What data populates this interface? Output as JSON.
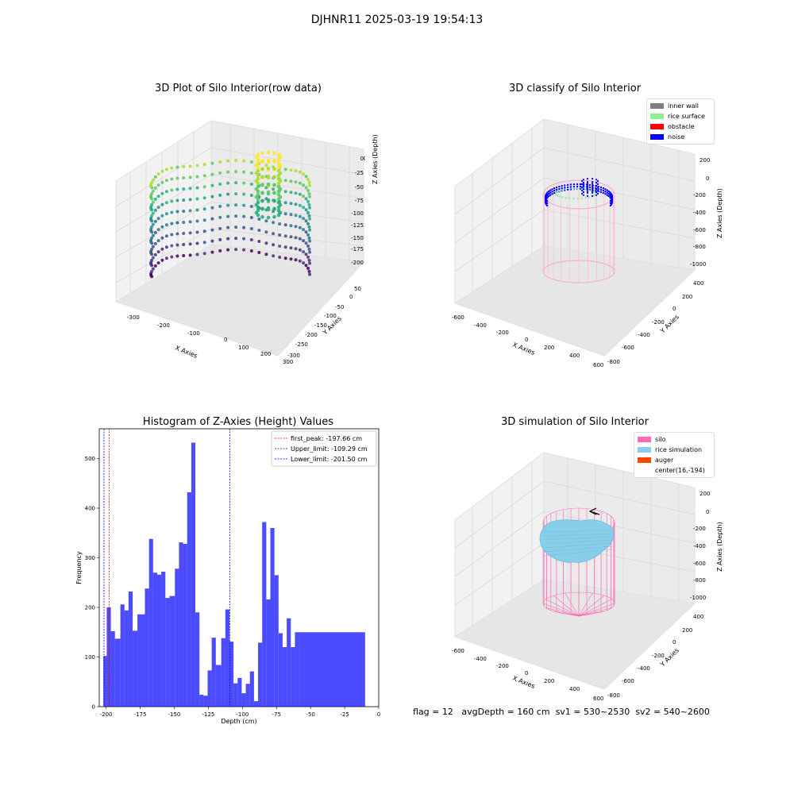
{
  "suptitle": "DJHNR11 2025-03-19 19:54:13",
  "panels": {
    "raw": {
      "title": "3D Plot of Silo Interior(row data)",
      "xlabel": "X Axies",
      "ylabel": "Y Axies",
      "zlabel": "Z Axies (Depth)",
      "xticks": [
        "-300",
        "-200",
        "-100",
        "0",
        "100",
        "200",
        "300"
      ],
      "yticks": [
        "50",
        "0",
        "-50",
        "-100",
        "-150",
        "-200",
        "-250",
        "-300"
      ],
      "zticks": [
        "0",
        "-25",
        "-50",
        "-75",
        "-100",
        "-125",
        "-150",
        "-175",
        "-200"
      ]
    },
    "classify": {
      "title": "3D classify of Silo Interior",
      "xlabel": "X Axies",
      "ylabel": "Y Axies",
      "zlabel": "Z Axies (Depth)",
      "xticks": [
        "-600",
        "-400",
        "-200",
        "0",
        "200",
        "400",
        "600"
      ],
      "yticks": [
        "400",
        "200",
        "0",
        "-200",
        "-400",
        "-600",
        "-800"
      ],
      "zticks": [
        "200",
        "0",
        "-200",
        "-400",
        "-600",
        "-800",
        "-1000"
      ],
      "legend": [
        {
          "label": "inner wall",
          "color": "#808080"
        },
        {
          "label": "rice surface",
          "color": "#90ee90"
        },
        {
          "label": "obstacle",
          "color": "#ff0000"
        },
        {
          "label": "noise",
          "color": "#0000ff"
        }
      ]
    },
    "simulation": {
      "title": "3D simulation of Silo Interior",
      "xlabel": "X Axies",
      "ylabel": "Y Axies",
      "zlabel": "Z Axies (Depth)",
      "xticks": [
        "-600",
        "-400",
        "-200",
        "0",
        "200",
        "400",
        "600"
      ],
      "yticks": [
        "400",
        "200",
        "0",
        "-200",
        "-400",
        "-600",
        "-800"
      ],
      "zticks": [
        "200",
        "0",
        "-200",
        "-400",
        "-600",
        "-800",
        "-1000"
      ],
      "legend": [
        {
          "label": "silo",
          "color": "#ff69b4"
        },
        {
          "label": "rice simulation",
          "color": "#87ceeb"
        },
        {
          "label": "auger",
          "color": "#ff4500"
        },
        {
          "label": "center(16,-194)",
          "color": ""
        }
      ]
    }
  },
  "chart_data": {
    "type": "bar",
    "title": "Histogram of Z-Axies (Height) Values",
    "xlabel": "Depth (cm)",
    "ylabel": "Frequency",
    "xlim": [
      -205,
      0
    ],
    "ylim": [
      0,
      560
    ],
    "xticks": [
      -200,
      -175,
      -150,
      -125,
      -100,
      -75,
      -50,
      -25,
      0
    ],
    "yticks": [
      0,
      100,
      200,
      300,
      400,
      500
    ],
    "bar_color": "#0000ff",
    "bins": [
      {
        "x0": -202,
        "x1": -199.5,
        "count": 102
      },
      {
        "x0": -199.5,
        "x1": -196.5,
        "count": 200
      },
      {
        "x0": -196.5,
        "x1": -193.5,
        "count": 152
      },
      {
        "x0": -193.5,
        "x1": -189.5,
        "count": 137
      },
      {
        "x0": -189.5,
        "x1": -186.5,
        "count": 206
      },
      {
        "x0": -186.5,
        "x1": -183.5,
        "count": 194
      },
      {
        "x0": -183.5,
        "x1": -180.5,
        "count": 232
      },
      {
        "x0": -180.5,
        "x1": -177.0,
        "count": 153
      },
      {
        "x0": -177.0,
        "x1": -171.5,
        "count": 186
      },
      {
        "x0": -171.5,
        "x1": -168.5,
        "count": 238
      },
      {
        "x0": -168.5,
        "x1": -165.5,
        "count": 338
      },
      {
        "x0": -165.5,
        "x1": -162.5,
        "count": 270
      },
      {
        "x0": -162.5,
        "x1": -159.5,
        "count": 266
      },
      {
        "x0": -159.5,
        "x1": -156.5,
        "count": 272
      },
      {
        "x0": -156.5,
        "x1": -153.5,
        "count": 219
      },
      {
        "x0": -153.5,
        "x1": -149.5,
        "count": 223
      },
      {
        "x0": -149.5,
        "x1": -146.5,
        "count": 278
      },
      {
        "x0": -146.5,
        "x1": -143.5,
        "count": 331
      },
      {
        "x0": -143.5,
        "x1": -140.5,
        "count": 328
      },
      {
        "x0": -140.5,
        "x1": -137.5,
        "count": 432
      },
      {
        "x0": -137.5,
        "x1": -134.5,
        "count": 532
      },
      {
        "x0": -134.5,
        "x1": -131.5,
        "count": 190
      },
      {
        "x0": -131.5,
        "x1": -128.5,
        "count": 24
      },
      {
        "x0": -128.5,
        "x1": -125.5,
        "count": 22
      },
      {
        "x0": -125.5,
        "x1": -122.5,
        "count": 73
      },
      {
        "x0": -122.5,
        "x1": -119.5,
        "count": 139
      },
      {
        "x0": -119.5,
        "x1": -115.5,
        "count": 84
      },
      {
        "x0": -115.5,
        "x1": -112.5,
        "count": 138
      },
      {
        "x0": -112.5,
        "x1": -109.5,
        "count": 196
      },
      {
        "x0": -109.5,
        "x1": -106.5,
        "count": 131
      },
      {
        "x0": -106.5,
        "x1": -103.5,
        "count": 47
      },
      {
        "x0": -103.5,
        "x1": -100.5,
        "count": 58
      },
      {
        "x0": -100.5,
        "x1": -97.5,
        "count": 27
      },
      {
        "x0": -97.5,
        "x1": -94.5,
        "count": 46
      },
      {
        "x0": -94.5,
        "x1": -91.5,
        "count": 71
      },
      {
        "x0": -91.5,
        "x1": -88.5,
        "count": 11
      },
      {
        "x0": -88.5,
        "x1": -85.5,
        "count": 129
      },
      {
        "x0": -85.5,
        "x1": -82.5,
        "count": 372
      },
      {
        "x0": -82.5,
        "x1": -79.5,
        "count": 216
      },
      {
        "x0": -79.5,
        "x1": -76.5,
        "count": 360
      },
      {
        "x0": -76.5,
        "x1": -73.5,
        "count": 265
      },
      {
        "x0": -73.5,
        "x1": -70.5,
        "count": 148
      },
      {
        "x0": -70.5,
        "x1": -67.5,
        "count": 120
      },
      {
        "x0": -67.5,
        "x1": -64.5,
        "count": 178
      },
      {
        "x0": -64.5,
        "x1": -61.5,
        "count": 120
      },
      {
        "x0": -61.5,
        "x1": -58.5,
        "count": 150
      },
      {
        "x0": -58.5,
        "x1": -10.0,
        "count": 150
      }
    ],
    "vlines": [
      {
        "label": "first_peak: -197.66 cm",
        "x": -197.66,
        "color": "#ff0000"
      },
      {
        "label": "Upper_limit: -109.29 cm",
        "x": -109.29,
        "color": "#0000ff"
      },
      {
        "label": "Lower_limit: -201.50 cm",
        "x": -201.5,
        "color": "#0000ff"
      }
    ]
  },
  "status": {
    "flag": "flag = 12",
    "avg_depth": "avgDepth = 160 cm",
    "sv1": "sv1 = 530~2530",
    "sv2": "sv2 = 540~2600"
  }
}
